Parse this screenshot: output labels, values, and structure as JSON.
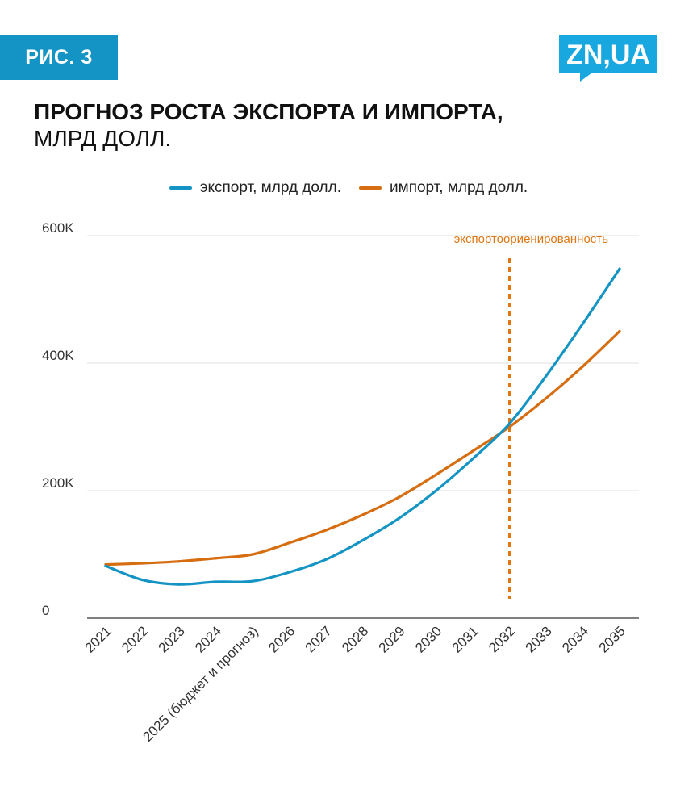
{
  "header": {
    "badge": "РИС. 3",
    "logo_text": "ZN,UA",
    "title_bold": "ПРОГНОЗ РОСТА ЭКСПОРТА И ИМПОРТА,",
    "title_rest": "МЛРД ДОЛЛ."
  },
  "colors": {
    "badge": "#1494c4",
    "logo": "#18a7df",
    "export": "#1494c4",
    "import": "#d66d10",
    "annotation": "#e07612",
    "grid": "#e2e2e2"
  },
  "chart_data": {
    "type": "line",
    "title": "ПРОГНОЗ РОСТА ЭКСПОРТА И ИМПОРТА, МЛРД ДОЛЛ.",
    "categories": [
      "2021",
      "2022",
      "2023",
      "2024",
      "2025 (бюджет и прогноз)",
      "2026",
      "2027",
      "2028",
      "2029",
      "2030",
      "2031",
      "2032",
      "2033",
      "2034",
      "2035"
    ],
    "series": [
      {
        "name": "экспорт, млрд долл.",
        "color": "#1494c4",
        "values": [
          82000,
          60000,
          53000,
          57000,
          58000,
          72000,
          92000,
          122000,
          157000,
          200000,
          250000,
          305000,
          380000,
          462000,
          548000
        ]
      },
      {
        "name": "импорт, млрд долл.",
        "color": "#d66d10",
        "values": [
          84000,
          86000,
          89000,
          94000,
          100000,
          118000,
          138000,
          162000,
          190000,
          225000,
          262000,
          300000,
          345000,
          395000,
          450000
        ]
      }
    ],
    "y_ticks": [
      "0",
      "200K",
      "400K",
      "600K"
    ],
    "ylim": [
      0,
      600000
    ],
    "grid": true,
    "legend": "top-center",
    "annotations": [
      {
        "text": "экспортоориенированность",
        "x": "2032",
        "style": "dashed-vertical"
      }
    ]
  }
}
